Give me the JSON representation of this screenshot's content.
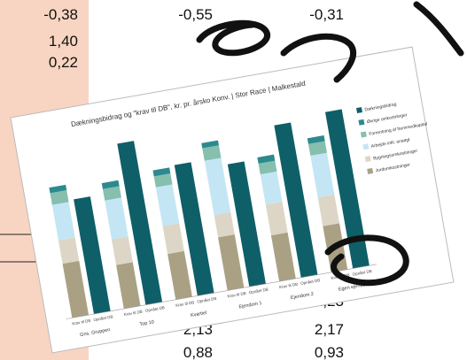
{
  "sheet": {
    "rows": [
      [
        "-0,38",
        "-0,55",
        "-0,31"
      ],
      [
        "1,40",
        null,
        null
      ],
      [
        "0,22",
        null,
        null
      ],
      [
        null,
        null,
        "2,23"
      ],
      [
        null,
        "2,13",
        "2,17"
      ],
      [
        null,
        "0,88",
        "0,93"
      ]
    ]
  },
  "chart_data": {
    "type": "grouped_stacked_bar",
    "title": "Dækningsbidrag og \"krav til DB\", kr. pr. årsko Konv. | Stor Race | Malkestald",
    "categories": [
      "Gns. Gruppen",
      "Top 10",
      "Kvartiel",
      "Ejendom 1",
      "Ejendom 2",
      "Egen ejendom"
    ],
    "bar_labels": [
      "Krav til DB",
      "Opnået DB"
    ],
    "series": [
      {
        "name": "Dækningsbidrag",
        "color": "#0e5f68",
        "stack": "db",
        "values": [
          9605,
          13500,
          10950,
          10254,
          12750,
          13100
        ]
      },
      {
        "name": "Øvrige omkostninger",
        "color": "#2c8a8f",
        "stack": "krav",
        "values": [
          455,
          495,
          500,
          420,
          520,
          480
        ]
      },
      {
        "name": "Forrentning af fremmedkapital",
        "color": "#86bfae",
        "stack": "krav",
        "values": [
          990,
          960,
          920,
          1050,
          900,
          980
        ]
      },
      {
        "name": "Arbejde inkl. ansøgt",
        "color": "#c4e6f4",
        "stack": "krav",
        "values": [
          2966,
          3250,
          3250,
          4537,
          2530,
          3500
        ]
      },
      {
        "name": "Bygningsomkostninger",
        "color": "#ddd6c6",
        "stack": "krav",
        "values": [
          1960,
          2152,
          2330,
          1880,
          2580,
          2400
        ]
      },
      {
        "name": "Jordomkostninger",
        "color": "#aaa185",
        "stack": "krav",
        "values": [
          4537,
          3665,
          3830,
          4456,
          3860,
          3868
        ]
      }
    ]
  }
}
